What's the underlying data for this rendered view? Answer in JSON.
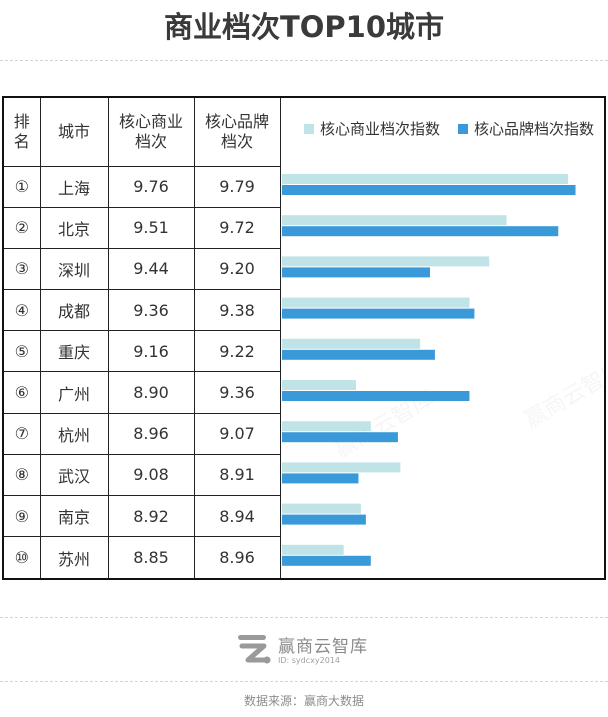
{
  "title": "商业档次TOP10城市",
  "table": {
    "headers": {
      "rank": "排名",
      "city": "城市",
      "v1": "核心商业档次",
      "v2": "核心品牌档次"
    },
    "rows": [
      {
        "rank": "①",
        "city": "上海",
        "v1": "9.76",
        "v2": "9.79"
      },
      {
        "rank": "②",
        "city": "北京",
        "v1": "9.51",
        "v2": "9.72"
      },
      {
        "rank": "③",
        "city": "深圳",
        "v1": "9.44",
        "v2": "9.20"
      },
      {
        "rank": "④",
        "city": "成都",
        "v1": "9.36",
        "v2": "9.38"
      },
      {
        "rank": "⑤",
        "city": "重庆",
        "v1": "9.16",
        "v2": "9.22"
      },
      {
        "rank": "⑥",
        "city": "广州",
        "v1": "8.90",
        "v2": "9.36"
      },
      {
        "rank": "⑦",
        "city": "杭州",
        "v1": "8.96",
        "v2": "9.07"
      },
      {
        "rank": "⑧",
        "city": "武汉",
        "v1": "9.08",
        "v2": "8.91"
      },
      {
        "rank": "⑨",
        "city": "南京",
        "v1": "8.92",
        "v2": "8.94"
      },
      {
        "rank": "⑩",
        "city": "苏州",
        "v1": "8.85",
        "v2": "8.96"
      }
    ]
  },
  "chart_data": {
    "type": "bar",
    "orientation": "horizontal",
    "categories": [
      "上海",
      "北京",
      "深圳",
      "成都",
      "重庆",
      "广州",
      "杭州",
      "武汉",
      "南京",
      "苏州"
    ],
    "series": [
      {
        "name": "核心商业档次指数",
        "color": "#bfe3e6",
        "values": [
          9.76,
          9.51,
          9.44,
          9.36,
          9.16,
          8.9,
          8.96,
          9.08,
          8.92,
          8.85
        ]
      },
      {
        "name": "核心品牌档次指数",
        "color": "#3a9ad9",
        "values": [
          9.79,
          9.72,
          9.2,
          9.38,
          9.22,
          9.36,
          9.07,
          8.91,
          8.94,
          8.96
        ]
      }
    ],
    "xlim": [
      8.6,
      9.8
    ],
    "grid": false,
    "legend": "top"
  },
  "watermark": "赢商云智库",
  "logo": {
    "name": "赢商云智库",
    "id": "ID: sydcxy2014"
  },
  "source": "数据来源：赢商大数据"
}
